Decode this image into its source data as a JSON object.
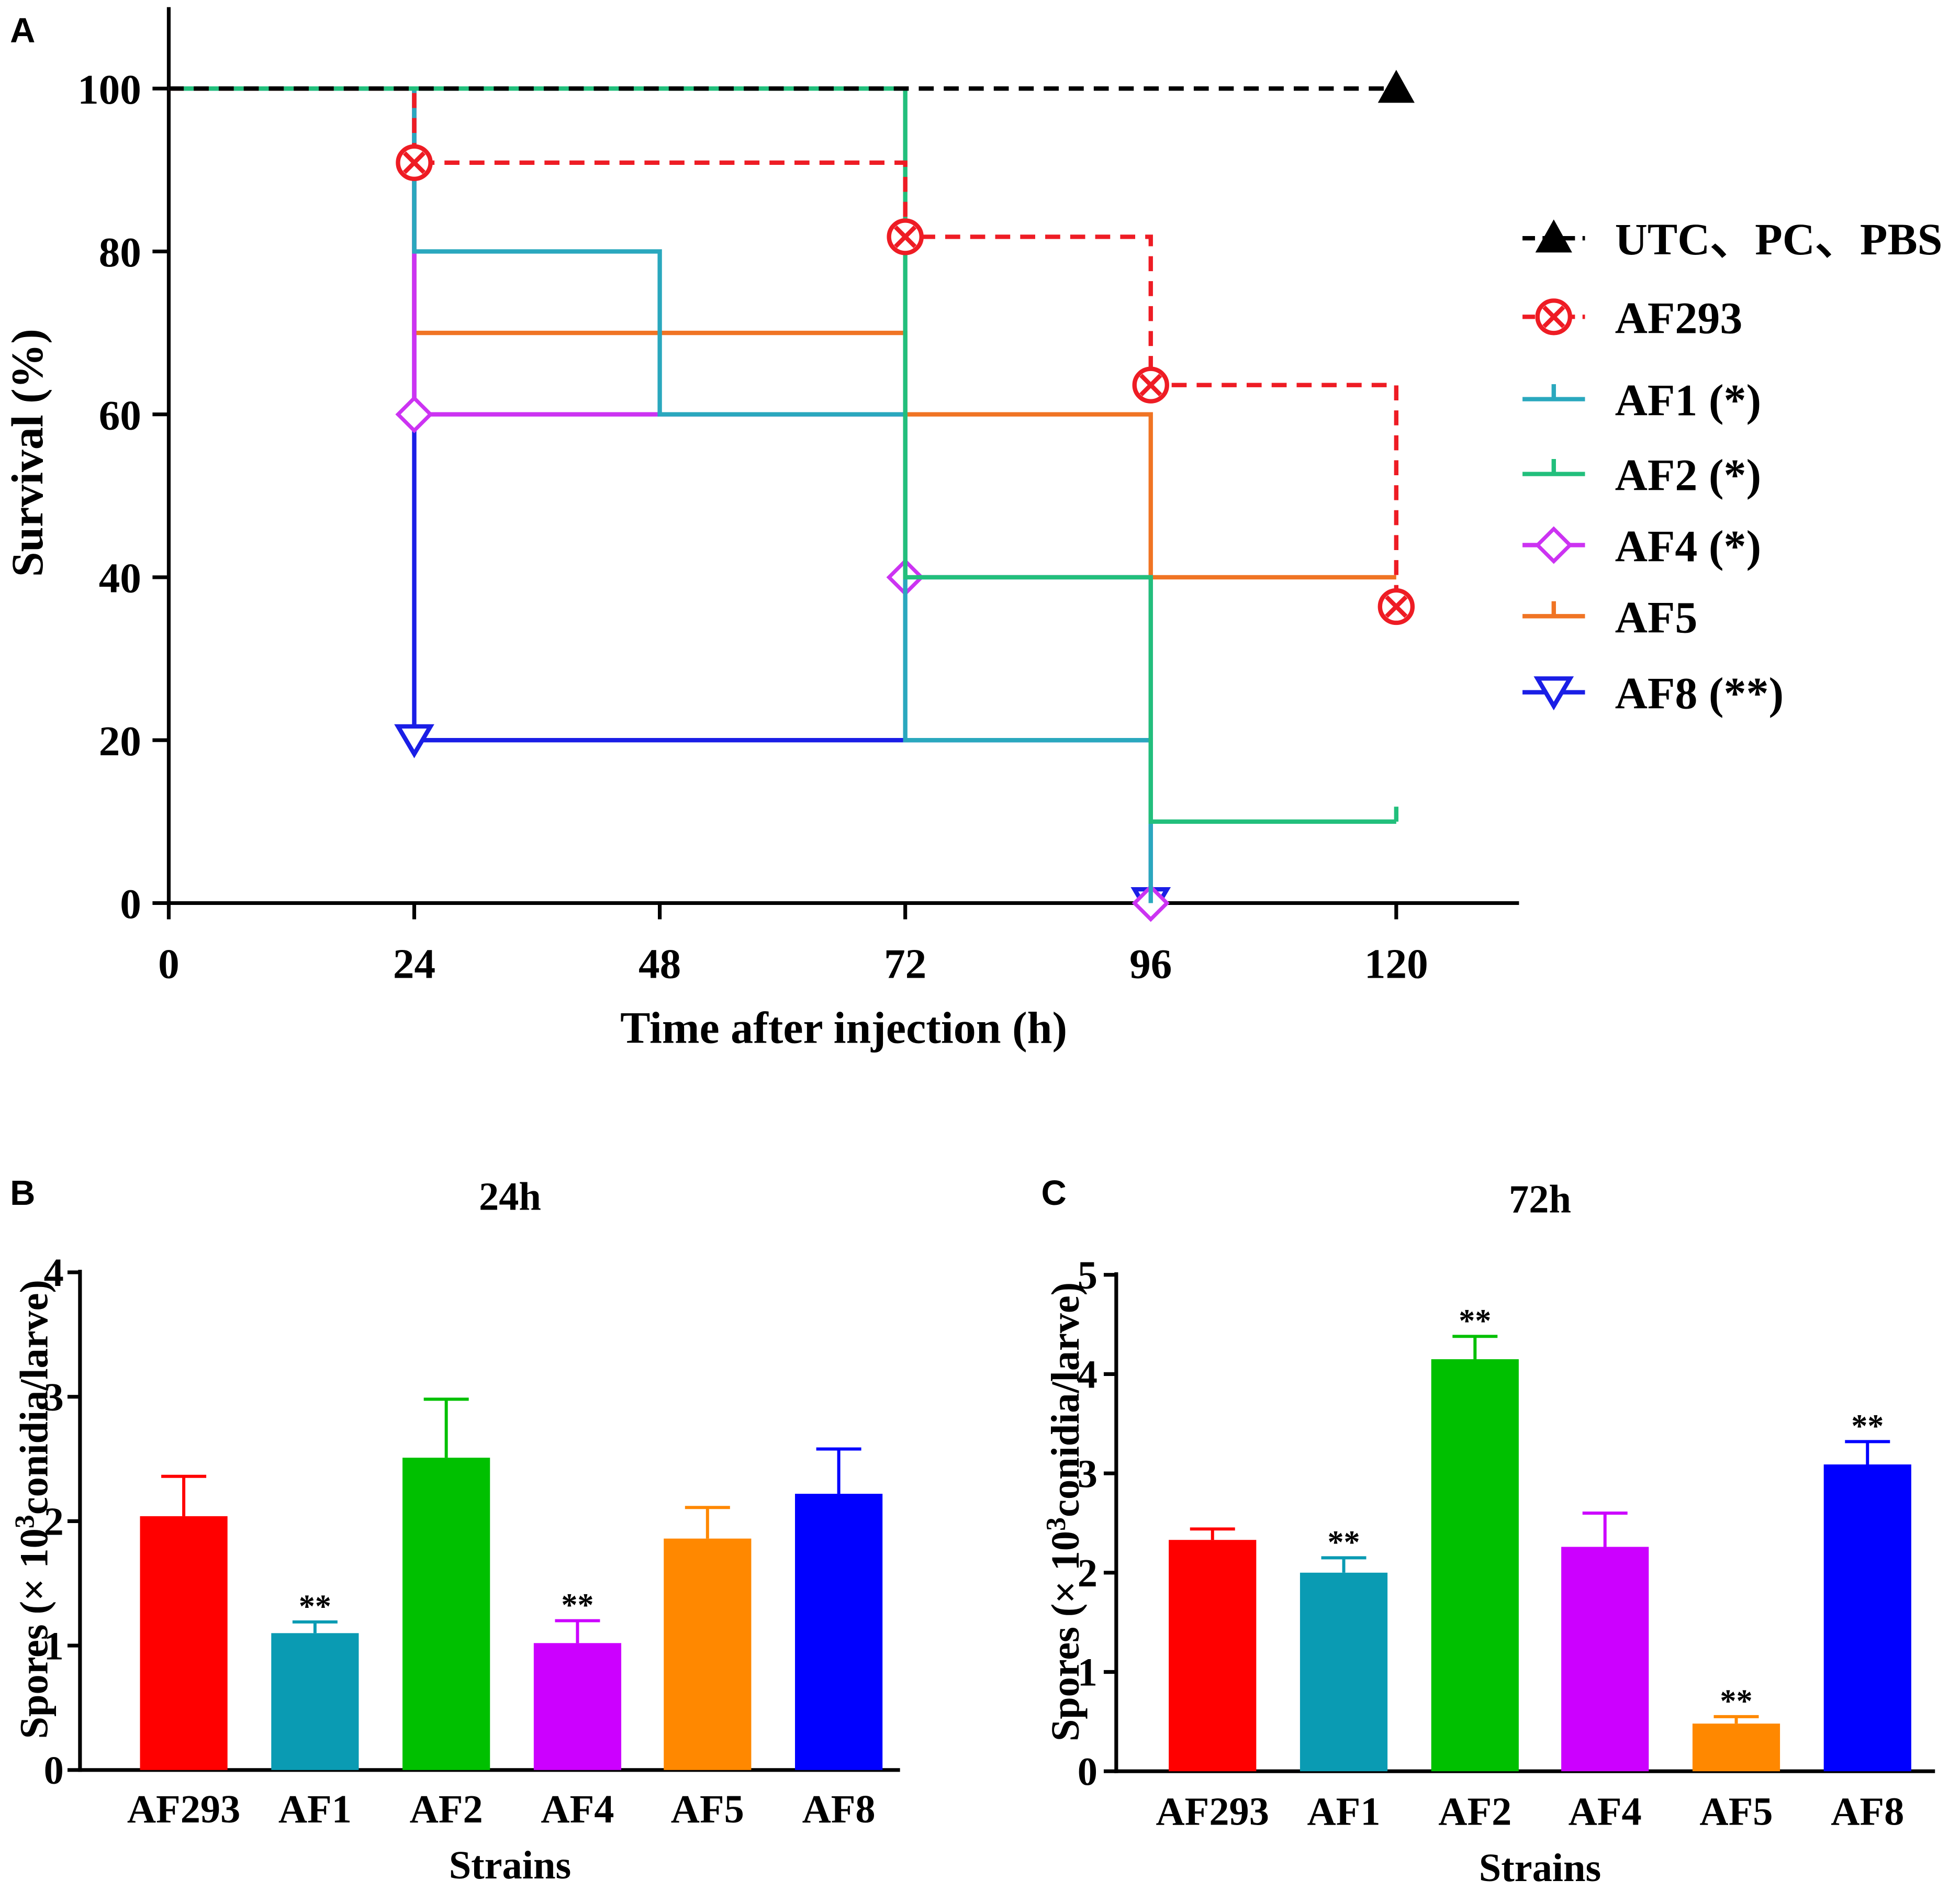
{
  "figure": {
    "panel_labels": [
      "A",
      "B",
      "C"
    ]
  },
  "chart_data": [
    {
      "type": "line",
      "title": "",
      "xlabel": "Time after injection (h)",
      "ylabel": "Survival (%)",
      "xlim": [
        0,
        132
      ],
      "ylim": [
        0,
        110
      ],
      "xticks": [
        0,
        24,
        48,
        72,
        96,
        120
      ],
      "yticks": [
        0,
        20,
        40,
        60,
        80,
        100
      ],
      "grid": false,
      "legend_position": "right",
      "series": [
        {
          "name": "UTC、PC、PBS",
          "color": "#000000",
          "dashed": true,
          "marker": "triangle-up",
          "time": [
            0,
            120
          ],
          "survival": [
            100,
            100
          ],
          "marker_time": [
            120
          ],
          "marker_survival": [
            100
          ]
        },
        {
          "name": "AF293",
          "color": "#ee1c24",
          "dashed": true,
          "marker": "circle-x",
          "time": [
            0,
            24,
            72,
            96,
            120
          ],
          "survival": [
            100,
            90.9,
            81.8,
            63.6,
            36.4
          ],
          "marker_time": [
            24,
            72,
            96,
            120
          ],
          "marker_survival": [
            90.9,
            81.8,
            63.6,
            36.4
          ]
        },
        {
          "name": "AF1 (*)",
          "color": "#2aa8be",
          "dashed": false,
          "marker": "tick",
          "time": [
            0,
            24,
            48,
            72,
            96
          ],
          "survival": [
            100,
            80,
            60,
            20,
            0
          ],
          "marker_time": [],
          "marker_survival": []
        },
        {
          "name": "AF2 (*)",
          "color": "#22bf7c",
          "dashed": false,
          "marker": "tick",
          "time": [
            0,
            72,
            96,
            120
          ],
          "survival": [
            100,
            40,
            10,
            10
          ],
          "marker_time": [
            120
          ],
          "marker_survival": [
            10
          ]
        },
        {
          "name": "AF4 (*)",
          "color": "#cc33f2",
          "dashed": false,
          "marker": "diamond",
          "time": [
            0,
            24,
            72,
            96
          ],
          "survival": [
            100,
            60,
            40,
            0
          ],
          "marker_time": [
            24,
            72,
            96
          ],
          "marker_survival": [
            60,
            40,
            0
          ]
        },
        {
          "name": "AF5",
          "color": "#f07424",
          "dashed": false,
          "marker": "tick",
          "time": [
            0,
            24,
            72,
            96,
            120
          ],
          "survival": [
            100,
            70,
            60,
            40,
            40
          ],
          "marker_time": [],
          "marker_survival": []
        },
        {
          "name": "AF8 (**)",
          "color": "#1a1ee6",
          "dashed": false,
          "marker": "triangle-down",
          "time": [
            0,
            24,
            96
          ],
          "survival": [
            100,
            20,
            0
          ],
          "marker_time": [
            24,
            96
          ],
          "marker_survival": [
            20,
            0
          ]
        }
      ]
    },
    {
      "type": "bar",
      "title": "24h",
      "xlabel": "Strains",
      "ylabel": {
        "prefix": "Spores (× 10",
        "superscript": "3",
        "suffix": "conidia/larve)"
      },
      "ylim": [
        0,
        4
      ],
      "yticks": [
        0,
        1,
        2,
        3,
        4
      ],
      "categories": [
        "AF293",
        "AF1",
        "AF2",
        "AF4",
        "AF5",
        "AF8"
      ],
      "values": [
        2.04,
        1.1,
        2.51,
        1.02,
        1.86,
        2.22
      ],
      "errors": [
        0.32,
        0.09,
        0.47,
        0.18,
        0.25,
        0.36
      ],
      "significance": [
        "",
        "**",
        "",
        "**",
        "",
        ""
      ],
      "colors": [
        "#ff0000",
        "#0a9bb3",
        "#00c000",
        "#cc00ff",
        "#ff8800",
        "#0000ff"
      ]
    },
    {
      "type": "bar",
      "title": "72h",
      "xlabel": "Strains",
      "ylabel": {
        "prefix": "Spores (× 10",
        "superscript": "3",
        "suffix": "conidia/larve)"
      },
      "ylim": [
        0,
        5
      ],
      "yticks": [
        0,
        1,
        2,
        3,
        4,
        5
      ],
      "categories": [
        "AF293",
        "AF1",
        "AF2",
        "AF4",
        "AF5",
        "AF8"
      ],
      "values": [
        2.33,
        2.0,
        4.15,
        2.26,
        0.48,
        3.09
      ],
      "errors": [
        0.11,
        0.15,
        0.23,
        0.34,
        0.07,
        0.23
      ],
      "significance": [
        "",
        "**",
        "**",
        "",
        "**",
        "**"
      ],
      "colors": [
        "#ff0000",
        "#0a9bb3",
        "#00c000",
        "#cc00ff",
        "#ff8800",
        "#0000ff"
      ]
    }
  ]
}
